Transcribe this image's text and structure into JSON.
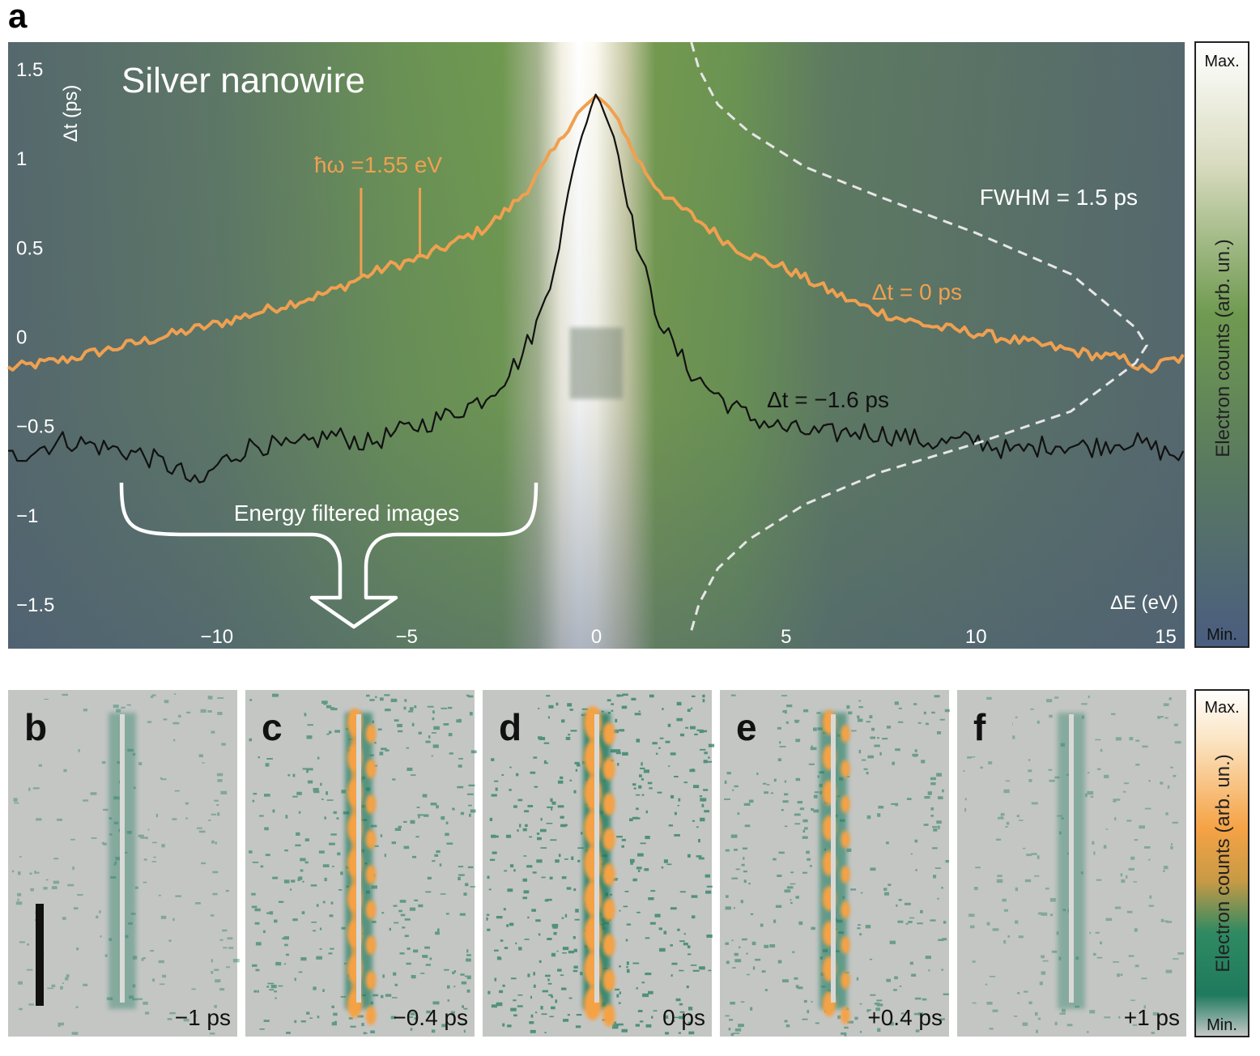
{
  "panel_labels": {
    "a": "a",
    "b": "b",
    "c": "c",
    "d": "d",
    "e": "e",
    "f": "f"
  },
  "colors": {
    "background_top": "#58726a",
    "green_band": "#6b9a4c",
    "orange_trace": "#f0a050",
    "black_trace": "#111111",
    "map_gray": "#c4c6c4",
    "map_green": "#1f7a5e",
    "map_orange": "#f5a245"
  },
  "chart_data": [
    {
      "type": "line",
      "panel": "a",
      "title": "Silver nanowire",
      "xlabel": "ΔE (eV)",
      "ylabel": "Δt (ps)",
      "xlim": [
        -15.5,
        15.5
      ],
      "ylim": [
        -1.75,
        1.65
      ],
      "x_ticks": [
        "−10",
        "−5",
        "0",
        "5",
        "10",
        "15"
      ],
      "x_tick_values": [
        -10,
        -5,
        0,
        5,
        10,
        15
      ],
      "y_ticks": [
        "1.5",
        "1",
        "0.5",
        "0",
        "−0.5",
        "−1",
        "−1.5"
      ],
      "y_tick_values": [
        1.5,
        1,
        0.5,
        0,
        -0.5,
        -1,
        -1.5
      ],
      "annotations": {
        "photon_energy": "ħω =1.55 eV",
        "fwhm": "FWHM = 1.5 ps",
        "energy_filtered": "Energy filtered images"
      },
      "series": [
        {
          "name": "Δt = 0 ps",
          "color": "#f0a050",
          "x": [
            -15.5,
            -14,
            -13,
            -12,
            -11,
            -10,
            -9,
            -8,
            -7,
            -6.2,
            -5.5,
            -4.6,
            -4,
            -3,
            -2.5,
            -2,
            -1.5,
            -1,
            -0.5,
            0,
            0.5,
            1,
            1.5,
            2,
            2.5,
            3,
            3.5,
            4,
            5,
            6,
            7,
            8,
            9,
            10,
            11,
            12,
            13,
            14,
            14.5,
            15,
            15.5
          ],
          "y": [
            -0.18,
            -0.13,
            -0.08,
            -0.03,
            0.02,
            0.07,
            0.13,
            0.19,
            0.25,
            0.33,
            0.39,
            0.44,
            0.5,
            0.6,
            0.68,
            0.78,
            0.92,
            1.08,
            1.25,
            1.35,
            1.25,
            1.02,
            0.86,
            0.75,
            0.68,
            0.6,
            0.52,
            0.46,
            0.38,
            0.27,
            0.17,
            0.1,
            0.05,
            0.02,
            -0.02,
            -0.06,
            -0.1,
            -0.13,
            -0.2,
            -0.14,
            -0.12
          ]
        },
        {
          "name": "Δt = −1.6 ps",
          "color": "#111111",
          "x": [
            -15.5,
            -14,
            -13,
            -12,
            -11,
            -10.5,
            -10,
            -9,
            -8,
            -7,
            -6,
            -5,
            -4,
            -3,
            -2.5,
            -2,
            -1.5,
            -1,
            -0.5,
            0,
            0.5,
            1,
            1.5,
            2,
            2.5,
            3,
            3.5,
            4,
            5,
            6,
            7,
            8,
            9,
            10,
            11,
            12,
            13,
            14,
            15,
            15.5
          ],
          "y": [
            -0.68,
            -0.58,
            -0.62,
            -0.66,
            -0.75,
            -0.85,
            -0.72,
            -0.6,
            -0.63,
            -0.55,
            -0.6,
            -0.52,
            -0.45,
            -0.35,
            -0.25,
            -0.12,
            0.1,
            0.5,
            1.05,
            1.37,
            1.1,
            0.58,
            0.18,
            -0.05,
            -0.2,
            -0.3,
            -0.38,
            -0.45,
            -0.52,
            -0.55,
            -0.53,
            -0.56,
            -0.6,
            -0.58,
            -0.65,
            -0.6,
            -0.62,
            -0.58,
            -0.65,
            -0.68
          ]
        },
        {
          "name": "FWHM = 1.5 ps",
          "color": "#e6e6e6",
          "x": [
            2.5,
            2.7,
            3.2,
            4,
            5.5,
            7.5,
            10,
            12.5,
            14.2,
            14.5,
            14.2,
            12.5,
            10,
            7.5,
            5.5,
            4,
            3.2,
            2.7,
            2.5
          ],
          "y": [
            1.65,
            1.5,
            1.3,
            1.15,
            0.95,
            0.78,
            0.58,
            0.35,
            0.05,
            -0.05,
            -0.15,
            -0.42,
            -0.6,
            -0.76,
            -0.94,
            -1.14,
            -1.3,
            -1.5,
            -1.65
          ]
        }
      ],
      "colorbar": {
        "max_label": "Max.",
        "min_label": "Min.",
        "label": "Electron counts (arb. un.)"
      }
    },
    {
      "type": "heatmap",
      "panel": "b-f",
      "x_labels": [
        "b",
        "c",
        "d",
        "e",
        "f"
      ],
      "time_labels": [
        "−1 ps",
        "−0.4 ps",
        "0 ps",
        "+0.4 ps",
        "+1 ps"
      ],
      "intensity": [
        0.15,
        0.7,
        1.0,
        0.55,
        0.12
      ],
      "colorbar": {
        "max_label": "Max.",
        "min_label": "Min.",
        "label": "Electron counts (arb. un.)"
      }
    }
  ]
}
